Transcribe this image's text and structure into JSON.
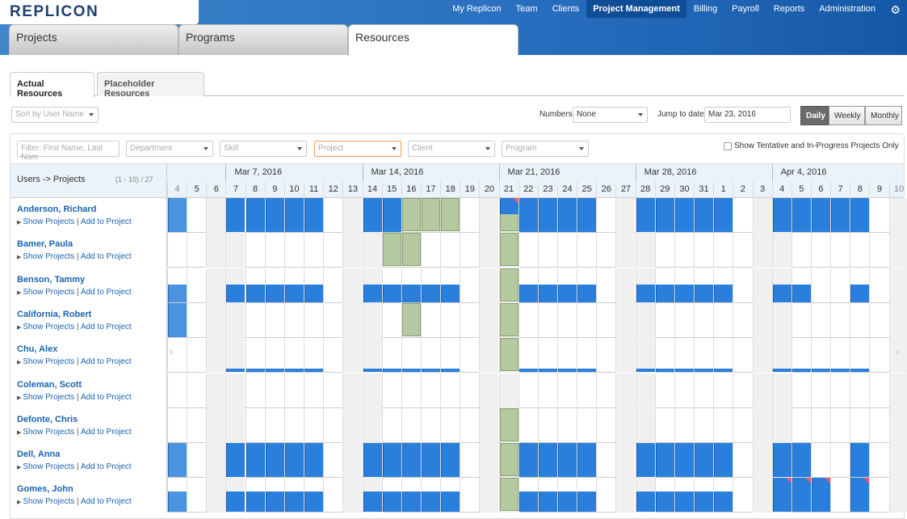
{
  "app": {
    "logo": "REPLICON"
  },
  "nav": [
    "My Replicon",
    "Team",
    "Clients",
    "Project Management",
    "Billing",
    "Payroll",
    "Reports",
    "Administration"
  ],
  "nav_active": "Project Management",
  "main_tabs": [
    "Projects",
    "Programs",
    "Resources"
  ],
  "main_tab_active": "Resources",
  "sub_tabs": [
    "Actual Resources",
    "Placeholder Resources"
  ],
  "toolbar": {
    "sort_placeholder": "Sort by User Name",
    "numbers_label": "Numbers",
    "numbers_value": "None",
    "jump_label": "Jump to date:",
    "jump_value": "Mar 23, 2016",
    "views": [
      "Daily",
      "Weekly",
      "Monthly"
    ],
    "view_active": "Daily"
  },
  "filters": {
    "name_placeholder": "Filter: First Name, Last Nam",
    "department": "Department",
    "skill": "Skill",
    "project": "Project",
    "client": "Client",
    "program": "Program",
    "tentative_label": "Show Tentative and In-Progress Projects Only"
  },
  "grid": {
    "header_left": "Users -> Projects",
    "count": "(1 - 10) / 27",
    "weeks": [
      "Mar 7, 2016",
      "Mar 14, 2016",
      "Mar 21, 2016",
      "Mar 28, 2016",
      "Apr 4, 2016"
    ],
    "days": [
      "4",
      "5",
      "6",
      "7",
      "8",
      "9",
      "10",
      "11",
      "12",
      "13",
      "14",
      "15",
      "16",
      "17",
      "18",
      "19",
      "20",
      "21",
      "22",
      "23",
      "24",
      "25",
      "26",
      "27",
      "28",
      "29",
      "30",
      "31",
      "1",
      "2",
      "3",
      "4",
      "5",
      "6",
      "7",
      "8",
      "9",
      "10"
    ],
    "show_projects": "Show Projects",
    "separator": "|",
    "add_to_project": "Add to Project",
    "users": [
      {
        "name": "Anderson, Richard"
      },
      {
        "name": "Bamer, Paula"
      },
      {
        "name": "Benson, Tammy"
      },
      {
        "name": "California, Robert"
      },
      {
        "name": "Chu, Alex"
      },
      {
        "name": "Coleman, Scott"
      },
      {
        "name": "Defonte, Chris"
      },
      {
        "name": "Dell, Anna"
      },
      {
        "name": "Gomes, John"
      }
    ]
  },
  "colors": {
    "allocation": "#2b7fdc",
    "tentative": "#b5c9a1",
    "overallocated": "#e85a73",
    "link": "#1a63b0"
  }
}
